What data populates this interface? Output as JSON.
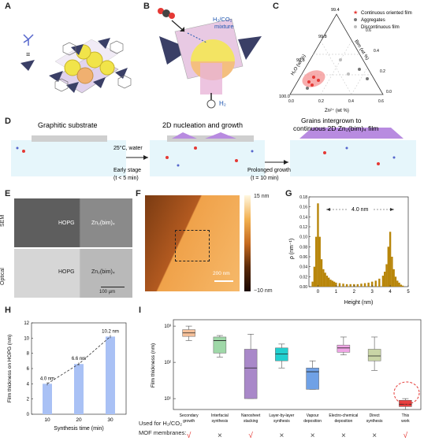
{
  "panel_letters": {
    "A": "A",
    "B": "B",
    "C": "C",
    "D": "D",
    "E": "E",
    "F": "F",
    "G": "G",
    "H": "H",
    "I": "I"
  },
  "panelA": {
    "equals": "≡"
  },
  "panelB": {
    "gas_label_line1": "H₂/CO₂",
    "gas_label_line2": "mixture",
    "h2_label": "H₂"
  },
  "panelC": {
    "top_tick": "99.4",
    "mid_tick": "99.8",
    "left_tick": "99.8",
    "low_tick": "100.0",
    "axis_left": "H₂O (wt %)",
    "axis_right": "Bim (wt %)",
    "axis_bottom": "Zn²⁺ (wt %)",
    "right_ticks": [
      "0.6",
      "0.4",
      "0.2",
      "0.0"
    ],
    "bottom_ticks": [
      "0.0",
      "0.2",
      "0.4",
      "0.6"
    ],
    "legend": [
      "Continuous oriented film",
      "Aggregates",
      "Discontinuous film"
    ],
    "colors": {
      "continuous": "#e53935",
      "aggregates": "#777777",
      "discontinuous": "#bdbdbd",
      "region": "#f48a8a"
    }
  },
  "panelD": {
    "graphitic": "Graphitic substrate",
    "nucleation": "2D nucleation and growth",
    "intergrown_line1": "Grains intergrown to",
    "intergrown_line2": "continuous 2D Zn₂(bim)₄ film",
    "cond": "25°C, water",
    "early": "Early stage",
    "early_t": "(t < 5 min)",
    "prolonged": "Prolonged growth",
    "prolonged_t": "(t = 10 min)"
  },
  "panelE": {
    "sem": "SEM",
    "optical": "Optical",
    "hopg1": "HOPG",
    "zn1": "Zn₂(bim)₄",
    "hopg2": "HOPG",
    "zn2": "Zn₂(bim)₄",
    "scale": "100 μm"
  },
  "panelF": {
    "scale": "200 nm",
    "cbar_top": "15 nm",
    "cbar_bottom": "−10 nm"
  },
  "panelG": {
    "ylabel": "ρ (nm⁻¹)",
    "xlabel": "Height (nm)",
    "annot": "4.0 nm",
    "yticks": [
      "0.00",
      "0.02",
      "0.04",
      "0.06",
      "0.08",
      "0.10",
      "0.12",
      "0.14",
      "0.16",
      "0.18"
    ],
    "xticks": [
      "0",
      "1",
      "2",
      "3",
      "4",
      "5"
    ]
  },
  "panelH": {
    "ylabel": "Film thickness on HOPG (nm)",
    "xlabel": "Synthesis time (min)",
    "yticks": [
      "0",
      "2",
      "4",
      "6",
      "8",
      "10",
      "12"
    ]
  },
  "panelI": {
    "ylabel": "Film thickness (nm)",
    "yticks": [
      "10¹",
      "10²",
      "10³"
    ],
    "row_label_line1": "Used for H₂/CO₂",
    "row_label_line2": "MOF membranes:",
    "marks": [
      "√",
      "×",
      "√",
      "×",
      "×",
      "×",
      "×",
      "√"
    ],
    "categories": [
      "Secondary growth",
      "Interfacial synthesis",
      "Nanosheet stacking",
      "Layer-by-layer synthesis",
      "Vapour deposition",
      "Electro-chemical deposition",
      "Direct synthesis",
      "This work"
    ]
  },
  "chart_data": [
    {
      "type": "bar",
      "panel": "H",
      "categories": [
        "10",
        "20",
        "30"
      ],
      "values": [
        4.0,
        6.6,
        10.2
      ],
      "data_labels": [
        "4.0 nm",
        "6.6 nm",
        "10.2 nm"
      ],
      "xlabel": "Synthesis time (min)",
      "ylabel": "Film thickness on HOPG (nm)",
      "ylim": [
        0,
        12
      ],
      "color": "#a9c1f5"
    },
    {
      "type": "bar",
      "panel": "G",
      "xlabel": "Height (nm)",
      "ylabel": "ρ (nm⁻¹)",
      "xlim": [
        -0.5,
        5
      ],
      "ylim": [
        0,
        0.18
      ],
      "x": [
        -0.3,
        -0.2,
        -0.1,
        0.0,
        0.1,
        0.2,
        0.3,
        0.4,
        0.5,
        0.6,
        0.7,
        0.8,
        0.9,
        1.0,
        1.2,
        1.4,
        1.6,
        1.8,
        2.0,
        2.2,
        2.4,
        2.6,
        2.8,
        3.0,
        3.2,
        3.4,
        3.6,
        3.7,
        3.8,
        3.9,
        4.0,
        4.1,
        4.2,
        4.3,
        4.4,
        4.5,
        4.6,
        4.7
      ],
      "values": [
        0.01,
        0.04,
        0.1,
        0.167,
        0.1,
        0.055,
        0.035,
        0.028,
        0.022,
        0.018,
        0.014,
        0.012,
        0.01,
        0.008,
        0.007,
        0.006,
        0.005,
        0.005,
        0.005,
        0.005,
        0.006,
        0.007,
        0.008,
        0.01,
        0.012,
        0.016,
        0.022,
        0.03,
        0.045,
        0.08,
        0.11,
        0.06,
        0.035,
        0.02,
        0.012,
        0.008,
        0.004,
        0.002
      ],
      "color": "#b8860b",
      "annotation": "4.0 nm"
    },
    {
      "type": "box",
      "panel": "I",
      "ylabel": "Film thickness (nm)",
      "yscale": "log",
      "ylim": [
        5,
        1500
      ],
      "categories": [
        "Secondary growth",
        "Interfacial synthesis",
        "Nanosheet stacking",
        "Layer-by-layer synthesis",
        "Vapour deposition",
        "Electro-chemical deposition",
        "Direct synthesis",
        "This work"
      ],
      "boxes": [
        {
          "min": 400,
          "q1": 520,
          "median": 650,
          "q3": 800,
          "max": 1000,
          "color": "#f5c09a"
        },
        {
          "min": 140,
          "q1": 180,
          "median": 400,
          "q3": 500,
          "max": 550,
          "color": "#9fd8a8"
        },
        {
          "min": 10,
          "q1": 10,
          "median": 70,
          "q3": 230,
          "max": 600,
          "color": "#a988c9"
        },
        {
          "min": 70,
          "q1": 110,
          "median": 170,
          "q3": 250,
          "max": 320,
          "color": "#22cfcf"
        },
        {
          "min": 18,
          "q1": 18,
          "median": 55,
          "q3": 70,
          "max": 110,
          "color": "#6fa1e6"
        },
        {
          "min": 160,
          "q1": 190,
          "median": 250,
          "q3": 300,
          "max": 500,
          "color": "#f0a6e6"
        },
        {
          "min": 60,
          "q1": 110,
          "median": 150,
          "q3": 230,
          "max": 500,
          "color": "#c9d5a6"
        },
        {
          "min": 5,
          "q1": 6,
          "median": 7,
          "q3": 9,
          "max": 10,
          "color": "#e84040"
        }
      ]
    }
  ]
}
